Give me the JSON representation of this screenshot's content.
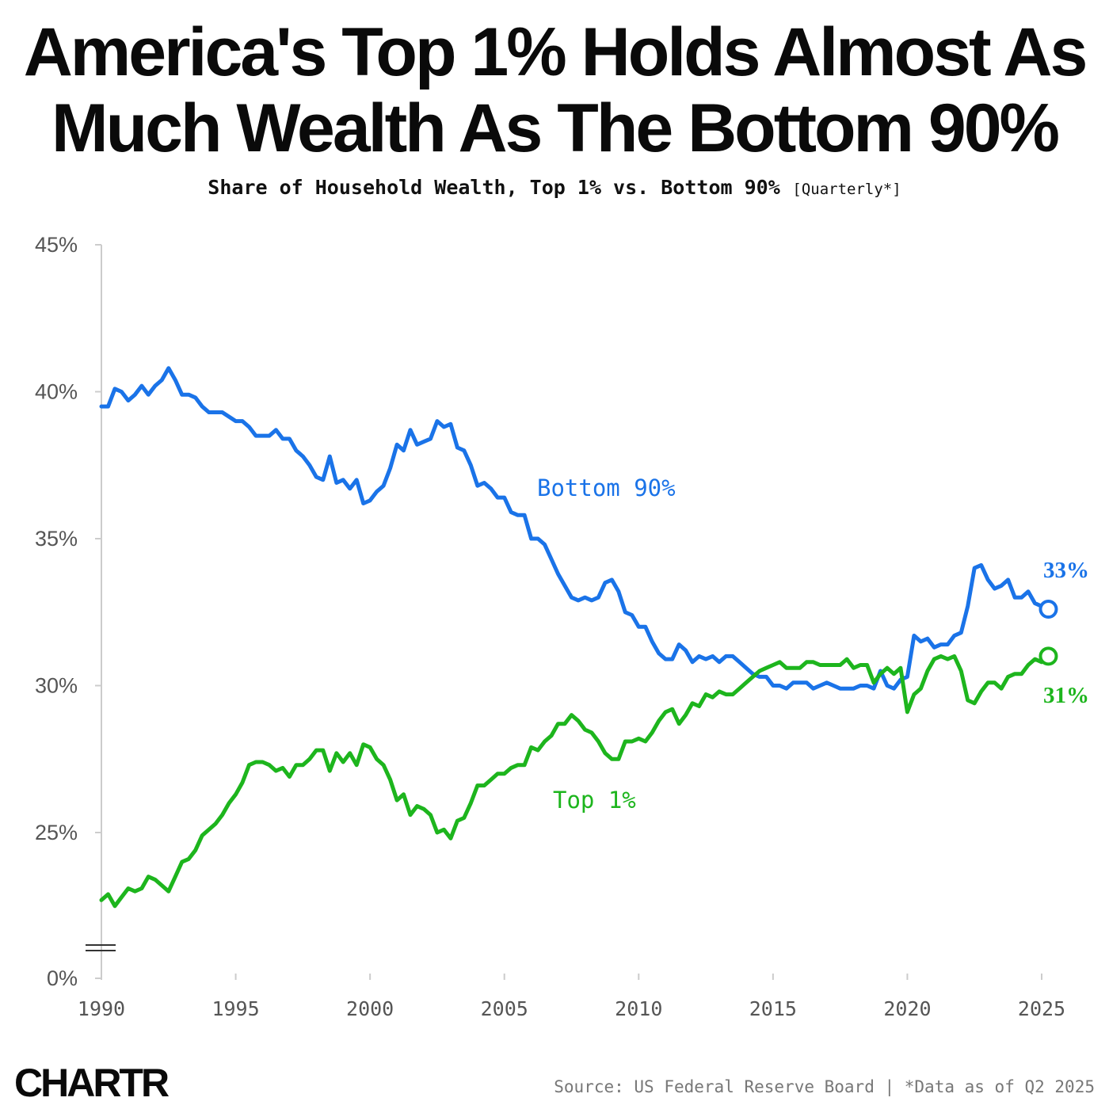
{
  "header": {
    "title_line1": "America's Top 1% Holds Almost As",
    "title_line2": "Much Wealth As The Bottom 90%",
    "subtitle_main": "Share of Household Wealth, Top 1% vs. Bottom 90%",
    "subtitle_note": "[Quarterly*]"
  },
  "footer": {
    "logo": "CHARTR",
    "source": "Source: US Federal Reserve Board | *Data as of Q2 2025"
  },
  "colors": {
    "bottom90": "#1a73e8",
    "top1": "#1db51d",
    "axis": "#cccccc",
    "tick_text": "#555555"
  },
  "chart_data": {
    "type": "line",
    "xlim": [
      1990,
      2025
    ],
    "ylim": [
      20,
      45
    ],
    "y_axis_break": true,
    "yticks": [
      {
        "value": 45,
        "label": "45%"
      },
      {
        "value": 40,
        "label": "40%"
      },
      {
        "value": 35,
        "label": "35%"
      },
      {
        "value": 30,
        "label": "30%"
      },
      {
        "value": 25,
        "label": "25%"
      },
      {
        "value": 0,
        "label": "0%"
      }
    ],
    "xticks": [
      {
        "value": 1990,
        "label": "1990"
      },
      {
        "value": 1995,
        "label": "1995"
      },
      {
        "value": 2000,
        "label": "2000"
      },
      {
        "value": 2005,
        "label": "2005"
      },
      {
        "value": 2010,
        "label": "2010"
      },
      {
        "value": 2015,
        "label": "2015"
      },
      {
        "value": 2020,
        "label": "2020"
      },
      {
        "value": 2025,
        "label": "2025"
      }
    ],
    "series": [
      {
        "name": "Bottom 90%",
        "end_label": "33%",
        "points": [
          [
            1990.0,
            39.5
          ],
          [
            1990.25,
            39.5
          ],
          [
            1990.5,
            40.1
          ],
          [
            1990.75,
            40.0
          ],
          [
            1991.0,
            39.7
          ],
          [
            1991.25,
            39.9
          ],
          [
            1991.5,
            40.2
          ],
          [
            1991.75,
            39.9
          ],
          [
            1992.0,
            40.2
          ],
          [
            1992.25,
            40.4
          ],
          [
            1992.5,
            40.8
          ],
          [
            1992.75,
            40.4
          ],
          [
            1993.0,
            39.9
          ],
          [
            1993.25,
            39.9
          ],
          [
            1993.5,
            39.8
          ],
          [
            1993.75,
            39.5
          ],
          [
            1994.0,
            39.3
          ],
          [
            1994.5,
            39.3
          ],
          [
            1995.0,
            39.0
          ],
          [
            1995.25,
            39.0
          ],
          [
            1995.5,
            38.8
          ],
          [
            1995.75,
            38.5
          ],
          [
            1996.0,
            38.5
          ],
          [
            1996.25,
            38.5
          ],
          [
            1996.5,
            38.7
          ],
          [
            1996.75,
            38.4
          ],
          [
            1997.0,
            38.4
          ],
          [
            1997.25,
            38.0
          ],
          [
            1997.5,
            37.8
          ],
          [
            1997.75,
            37.5
          ],
          [
            1998.0,
            37.1
          ],
          [
            1998.25,
            37.0
          ],
          [
            1998.5,
            37.8
          ],
          [
            1998.75,
            36.9
          ],
          [
            1999.0,
            37.0
          ],
          [
            1999.25,
            36.7
          ],
          [
            1999.5,
            37.0
          ],
          [
            1999.75,
            36.2
          ],
          [
            2000.0,
            36.3
          ],
          [
            2000.25,
            36.6
          ],
          [
            2000.5,
            36.8
          ],
          [
            2000.75,
            37.4
          ],
          [
            2001.0,
            38.2
          ],
          [
            2001.25,
            38.0
          ],
          [
            2001.5,
            38.7
          ],
          [
            2001.75,
            38.2
          ],
          [
            2002.0,
            38.3
          ],
          [
            2002.25,
            38.4
          ],
          [
            2002.5,
            39.0
          ],
          [
            2002.75,
            38.8
          ],
          [
            2003.0,
            38.9
          ],
          [
            2003.25,
            38.1
          ],
          [
            2003.5,
            38.0
          ],
          [
            2003.75,
            37.5
          ],
          [
            2004.0,
            36.8
          ],
          [
            2004.25,
            36.9
          ],
          [
            2004.5,
            36.7
          ],
          [
            2004.75,
            36.4
          ],
          [
            2005.0,
            36.4
          ],
          [
            2005.25,
            35.9
          ],
          [
            2005.5,
            35.8
          ],
          [
            2005.75,
            35.8
          ],
          [
            2006.0,
            35.0
          ],
          [
            2006.25,
            35.0
          ],
          [
            2006.5,
            34.8
          ],
          [
            2006.75,
            34.3
          ],
          [
            2007.0,
            33.8
          ],
          [
            2007.25,
            33.4
          ],
          [
            2007.5,
            33.0
          ],
          [
            2007.75,
            32.9
          ],
          [
            2008.0,
            33.0
          ],
          [
            2008.25,
            32.9
          ],
          [
            2008.5,
            33.0
          ],
          [
            2008.75,
            33.5
          ],
          [
            2009.0,
            33.6
          ],
          [
            2009.25,
            33.2
          ],
          [
            2009.5,
            32.5
          ],
          [
            2009.75,
            32.4
          ],
          [
            2010.0,
            32.0
          ],
          [
            2010.25,
            32.0
          ],
          [
            2010.5,
            31.5
          ],
          [
            2010.75,
            31.1
          ],
          [
            2011.0,
            30.9
          ],
          [
            2011.25,
            30.9
          ],
          [
            2011.5,
            31.4
          ],
          [
            2011.75,
            31.2
          ],
          [
            2012.0,
            30.8
          ],
          [
            2012.25,
            31.0
          ],
          [
            2012.5,
            30.9
          ],
          [
            2012.75,
            31.0
          ],
          [
            2013.0,
            30.8
          ],
          [
            2013.25,
            31.0
          ],
          [
            2013.5,
            31.0
          ],
          [
            2013.75,
            30.8
          ],
          [
            2014.0,
            30.6
          ],
          [
            2014.25,
            30.4
          ],
          [
            2014.5,
            30.3
          ],
          [
            2014.75,
            30.3
          ],
          [
            2015.0,
            30.0
          ],
          [
            2015.25,
            30.0
          ],
          [
            2015.5,
            29.9
          ],
          [
            2015.75,
            30.1
          ],
          [
            2016.0,
            30.1
          ],
          [
            2016.25,
            30.1
          ],
          [
            2016.5,
            29.9
          ],
          [
            2016.75,
            30.0
          ],
          [
            2017.0,
            30.1
          ],
          [
            2017.25,
            30.0
          ],
          [
            2017.5,
            29.9
          ],
          [
            2017.75,
            29.9
          ],
          [
            2018.0,
            29.9
          ],
          [
            2018.25,
            30.0
          ],
          [
            2018.5,
            30.0
          ],
          [
            2018.75,
            29.9
          ],
          [
            2019.0,
            30.5
          ],
          [
            2019.25,
            30.0
          ],
          [
            2019.5,
            29.9
          ],
          [
            2019.75,
            30.2
          ],
          [
            2020.0,
            30.3
          ],
          [
            2020.25,
            31.7
          ],
          [
            2020.5,
            31.5
          ],
          [
            2020.75,
            31.6
          ],
          [
            2021.0,
            31.3
          ],
          [
            2021.25,
            31.4
          ],
          [
            2021.5,
            31.4
          ],
          [
            2021.75,
            31.7
          ],
          [
            2022.0,
            31.8
          ],
          [
            2022.25,
            32.7
          ],
          [
            2022.5,
            34.0
          ],
          [
            2022.75,
            34.1
          ],
          [
            2023.0,
            33.6
          ],
          [
            2023.25,
            33.3
          ],
          [
            2023.5,
            33.4
          ],
          [
            2023.75,
            33.6
          ],
          [
            2024.0,
            33.0
          ],
          [
            2024.25,
            33.0
          ],
          [
            2024.5,
            33.2
          ],
          [
            2024.75,
            32.8
          ],
          [
            2025.0,
            32.7
          ],
          [
            2025.25,
            32.6
          ]
        ]
      },
      {
        "name": "Top 1%",
        "end_label": "31%",
        "points": [
          [
            1990.0,
            22.7
          ],
          [
            1990.25,
            22.9
          ],
          [
            1990.5,
            22.5
          ],
          [
            1990.75,
            22.8
          ],
          [
            1991.0,
            23.1
          ],
          [
            1991.25,
            23.0
          ],
          [
            1991.5,
            23.1
          ],
          [
            1991.75,
            23.5
          ],
          [
            1992.0,
            23.4
          ],
          [
            1992.25,
            23.2
          ],
          [
            1992.5,
            23.0
          ],
          [
            1992.75,
            23.5
          ],
          [
            1993.0,
            24.0
          ],
          [
            1993.25,
            24.1
          ],
          [
            1993.5,
            24.4
          ],
          [
            1993.75,
            24.9
          ],
          [
            1994.0,
            25.1
          ],
          [
            1994.25,
            25.3
          ],
          [
            1994.5,
            25.6
          ],
          [
            1994.75,
            26.0
          ],
          [
            1995.0,
            26.3
          ],
          [
            1995.25,
            26.7
          ],
          [
            1995.5,
            27.3
          ],
          [
            1995.75,
            27.4
          ],
          [
            1996.0,
            27.4
          ],
          [
            1996.25,
            27.3
          ],
          [
            1996.5,
            27.1
          ],
          [
            1996.75,
            27.2
          ],
          [
            1997.0,
            26.9
          ],
          [
            1997.25,
            27.3
          ],
          [
            1997.5,
            27.3
          ],
          [
            1997.75,
            27.5
          ],
          [
            1998.0,
            27.8
          ],
          [
            1998.25,
            27.8
          ],
          [
            1998.5,
            27.1
          ],
          [
            1998.75,
            27.7
          ],
          [
            1999.0,
            27.4
          ],
          [
            1999.25,
            27.7
          ],
          [
            1999.5,
            27.3
          ],
          [
            1999.75,
            28.0
          ],
          [
            2000.0,
            27.9
          ],
          [
            2000.25,
            27.5
          ],
          [
            2000.5,
            27.3
          ],
          [
            2000.75,
            26.8
          ],
          [
            2001.0,
            26.1
          ],
          [
            2001.25,
            26.3
          ],
          [
            2001.5,
            25.6
          ],
          [
            2001.75,
            25.9
          ],
          [
            2002.0,
            25.8
          ],
          [
            2002.25,
            25.6
          ],
          [
            2002.5,
            25.0
          ],
          [
            2002.75,
            25.1
          ],
          [
            2003.0,
            24.8
          ],
          [
            2003.25,
            25.4
          ],
          [
            2003.5,
            25.5
          ],
          [
            2003.75,
            26.0
          ],
          [
            2004.0,
            26.6
          ],
          [
            2004.25,
            26.6
          ],
          [
            2004.5,
            26.8
          ],
          [
            2004.75,
            27.0
          ],
          [
            2005.0,
            27.0
          ],
          [
            2005.25,
            27.2
          ],
          [
            2005.5,
            27.3
          ],
          [
            2005.75,
            27.3
          ],
          [
            2006.0,
            27.9
          ],
          [
            2006.25,
            27.8
          ],
          [
            2006.5,
            28.1
          ],
          [
            2006.75,
            28.3
          ],
          [
            2007.0,
            28.7
          ],
          [
            2007.25,
            28.7
          ],
          [
            2007.5,
            29.0
          ],
          [
            2007.75,
            28.8
          ],
          [
            2008.0,
            28.5
          ],
          [
            2008.25,
            28.4
          ],
          [
            2008.5,
            28.1
          ],
          [
            2008.75,
            27.7
          ],
          [
            2009.0,
            27.5
          ],
          [
            2009.25,
            27.5
          ],
          [
            2009.5,
            28.1
          ],
          [
            2009.75,
            28.1
          ],
          [
            2010.0,
            28.2
          ],
          [
            2010.25,
            28.1
          ],
          [
            2010.5,
            28.4
          ],
          [
            2010.75,
            28.8
          ],
          [
            2011.0,
            29.1
          ],
          [
            2011.25,
            29.2
          ],
          [
            2011.5,
            28.7
          ],
          [
            2011.75,
            29.0
          ],
          [
            2012.0,
            29.4
          ],
          [
            2012.25,
            29.3
          ],
          [
            2012.5,
            29.7
          ],
          [
            2012.75,
            29.6
          ],
          [
            2013.0,
            29.8
          ],
          [
            2013.25,
            29.7
          ],
          [
            2013.5,
            29.7
          ],
          [
            2013.75,
            29.9
          ],
          [
            2014.0,
            30.1
          ],
          [
            2014.25,
            30.3
          ],
          [
            2014.5,
            30.5
          ],
          [
            2014.75,
            30.6
          ],
          [
            2015.0,
            30.7
          ],
          [
            2015.25,
            30.8
          ],
          [
            2015.5,
            30.6
          ],
          [
            2015.75,
            30.6
          ],
          [
            2016.0,
            30.6
          ],
          [
            2016.25,
            30.8
          ],
          [
            2016.5,
            30.8
          ],
          [
            2016.75,
            30.7
          ],
          [
            2017.0,
            30.7
          ],
          [
            2017.25,
            30.7
          ],
          [
            2017.5,
            30.7
          ],
          [
            2017.75,
            30.9
          ],
          [
            2018.0,
            30.6
          ],
          [
            2018.25,
            30.7
          ],
          [
            2018.5,
            30.7
          ],
          [
            2018.75,
            30.1
          ],
          [
            2019.0,
            30.4
          ],
          [
            2019.25,
            30.6
          ],
          [
            2019.5,
            30.4
          ],
          [
            2019.75,
            30.6
          ],
          [
            2020.0,
            29.1
          ],
          [
            2020.25,
            29.7
          ],
          [
            2020.5,
            29.9
          ],
          [
            2020.75,
            30.5
          ],
          [
            2021.0,
            30.9
          ],
          [
            2021.25,
            31.0
          ],
          [
            2021.5,
            30.9
          ],
          [
            2021.75,
            31.0
          ],
          [
            2022.0,
            30.5
          ],
          [
            2022.25,
            29.5
          ],
          [
            2022.5,
            29.4
          ],
          [
            2022.75,
            29.8
          ],
          [
            2023.0,
            30.1
          ],
          [
            2023.25,
            30.1
          ],
          [
            2023.5,
            29.9
          ],
          [
            2023.75,
            30.3
          ],
          [
            2024.0,
            30.4
          ],
          [
            2024.25,
            30.4
          ],
          [
            2024.5,
            30.7
          ],
          [
            2024.75,
            30.9
          ],
          [
            2025.0,
            30.8
          ],
          [
            2025.25,
            31.0
          ]
        ]
      }
    ]
  }
}
